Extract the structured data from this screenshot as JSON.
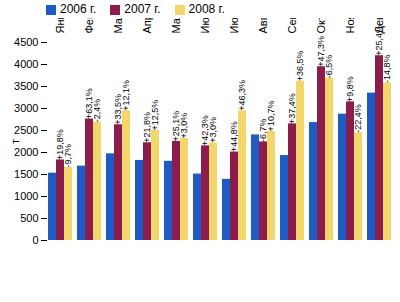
{
  "chart_data": {
    "type": "bar",
    "categories": [
      "Январь",
      "Февраль",
      "Март",
      "Апрель",
      "Май",
      "Июнь",
      "Июль",
      "Август",
      "Сентябрь",
      "Октябрь",
      "Ноябрь",
      "Декабрь"
    ],
    "series": [
      {
        "name": "2006 г.",
        "color": "#1f5bc4",
        "values": [
          1530,
          1690,
          1970,
          1820,
          1800,
          1510,
          1390,
          2400,
          1930,
          2680,
          2870,
          3350
        ]
      },
      {
        "name": "2007 г.",
        "color": "#8b1c4c",
        "values": [
          1830,
          2760,
          2630,
          2220,
          2250,
          2150,
          2010,
          2240,
          2650,
          3950,
          3150,
          4200
        ],
        "change_labels": [
          "+19,8%",
          "+63,1%",
          "+33,5%",
          "+21,8%",
          "+25,1%",
          "+42,3%",
          "+44,8%",
          "-6,7%",
          "+37,4%",
          "+47,3%",
          "+9,8%",
          "+25,4%"
        ]
      },
      {
        "name": "2008 г.",
        "color": "#f3d76a",
        "values": [
          1660,
          2690,
          2950,
          2500,
          2320,
          2220,
          2950,
          2480,
          3620,
          3690,
          2450,
          3580
        ],
        "change_labels": [
          "-9,7%",
          "-2,4%",
          "+12,1%",
          "+12,5%",
          "+3,0%",
          "+3,0%",
          "+46,3%",
          "+10,7%",
          "+36,5%",
          "-6,5%",
          "-22,4%",
          "-14,8%"
        ]
      }
    ],
    "y_label": "т",
    "ylim": [
      0,
      4500
    ],
    "yticks": [
      0,
      500,
      1000,
      1500,
      2000,
      2500,
      3000,
      3500,
      4000,
      4500
    ],
    "grid": false,
    "legend": "top"
  }
}
